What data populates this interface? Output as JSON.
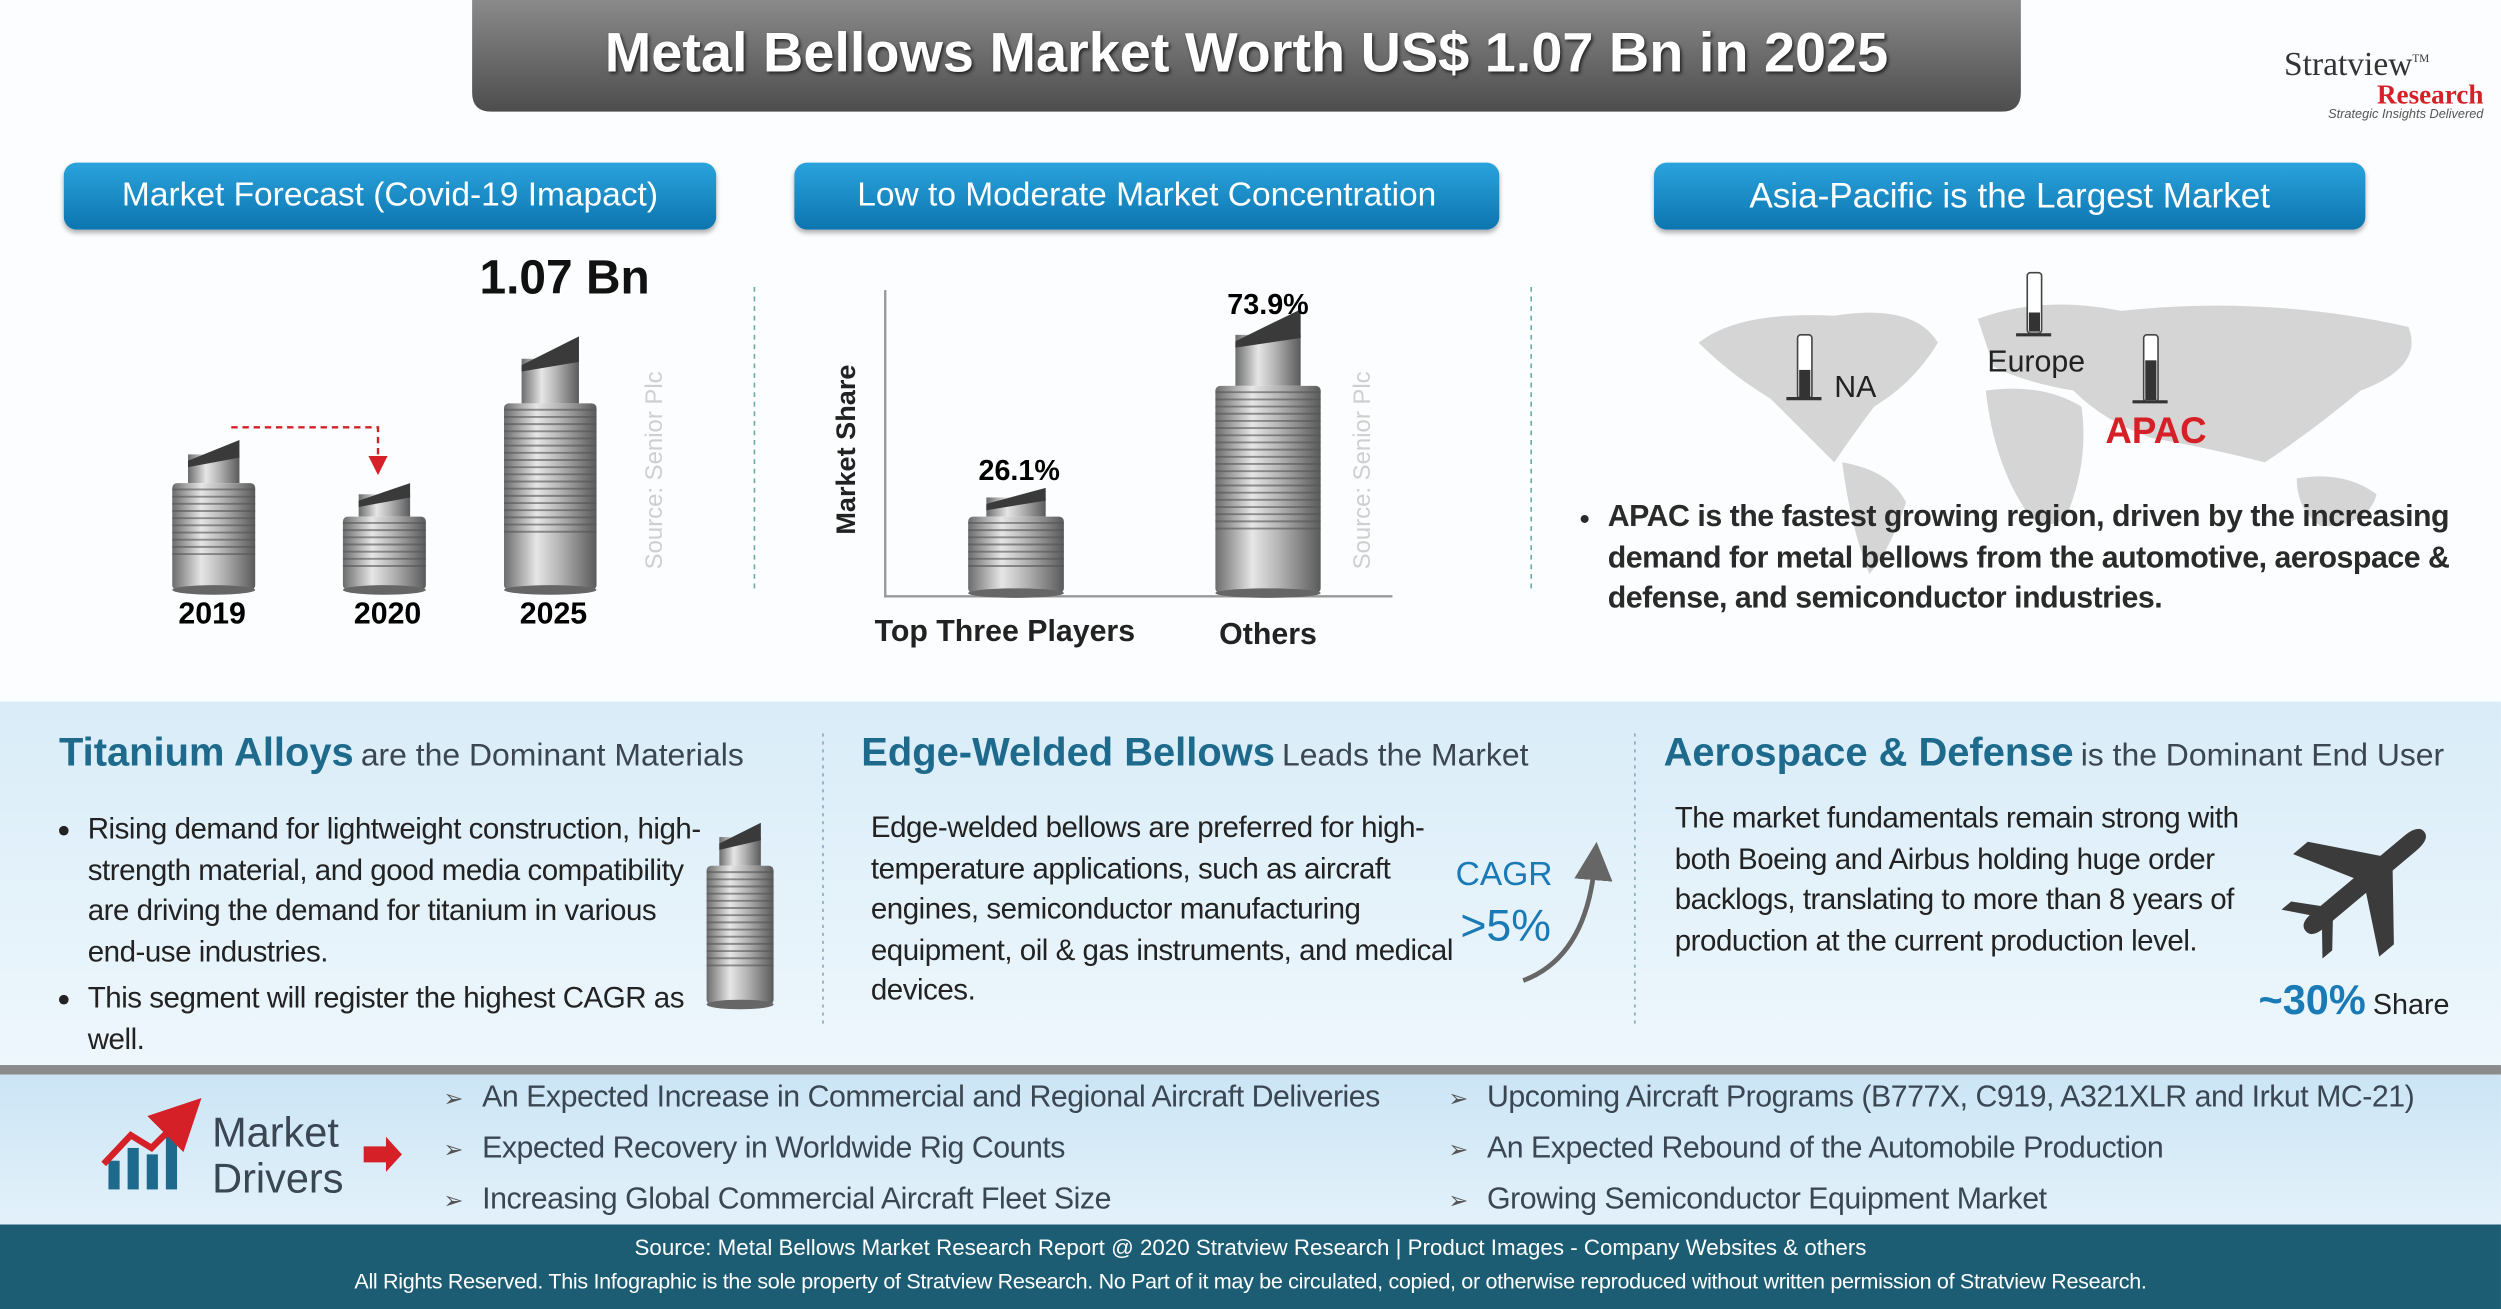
{
  "header": {
    "title": "Metal Bellows Market Worth US$ 1.07 Bn in 2025",
    "logo": {
      "name": "Stratview",
      "tm": "TM",
      "sub": "Research",
      "tagline": "Strategic Insights Delivered"
    }
  },
  "forecast": {
    "heading": "Market Forecast (Covid-19 Imapact)",
    "value_label": "1.07 Bn",
    "years": [
      "2019",
      "2020",
      "2025"
    ],
    "source": "Source: Senior Plc"
  },
  "concentration": {
    "heading": "Low to Moderate Market Concentration",
    "y_label": "Market Share",
    "bars": [
      {
        "label": "Top Three Players",
        "value_label": "26.1%"
      },
      {
        "label": "Others",
        "value_label": "73.9%"
      }
    ],
    "source": "Source: Senior Plc"
  },
  "region": {
    "heading": "Asia-Pacific is the Largest Market",
    "regions": [
      "NA",
      "Europe",
      "APAC"
    ],
    "bullet": "APAC is the fastest growing region, driven by the increasing demand for metal bellows from the automotive, aerospace & defense, and semiconductor industries."
  },
  "materials": {
    "highlight": "Titanium Alloys",
    "heading": "are the Dominant Materials",
    "bullets": [
      "Rising demand for lightweight construction, high-strength material, and good media compatibility are driving the demand for titanium in various end-use industries.",
      "This segment will register the highest CAGR as well."
    ]
  },
  "types": {
    "highlight": "Edge-Welded Bellows",
    "heading": "Leads the Market",
    "text": "Edge-welded bellows are preferred for high-temperature applications, such as aircraft engines, semiconductor manufacturing equipment, oil & gas instruments, and medical devices.",
    "cagr_label": "CAGR",
    "cagr_value": ">5%"
  },
  "end_user": {
    "highlight": "Aerospace & Defense",
    "heading": "is the Dominant End User",
    "text": "The market fundamentals remain strong with both Boeing and Airbus holding huge order backlogs, translating to more than 8 years of production at the current production level.",
    "share_value": "~30%",
    "share_label": "Share"
  },
  "drivers": {
    "title": [
      "Market",
      "Drivers"
    ],
    "items": [
      "An Expected Increase in Commercial and Regional Aircraft Deliveries",
      "Upcoming Aircraft Programs (B777X, C919, A321XLR and Irkut MC-21)",
      "Expected Recovery in Worldwide Rig Counts",
      "An Expected Rebound of the Automobile Production",
      "Increasing Global Commercial Aircraft Fleet Size",
      "Growing Semiconductor Equipment Market"
    ]
  },
  "footer": {
    "source": "Source: Metal Bellows Market Research Report @ 2020 Stratview Research | Product Images - Company Websites & others",
    "rights": "All Rights Reserved. This Infographic is the sole property of Stratview Research. No Part of it may be circulated, copied, or otherwise reproduced without written permission of Stratview Research."
  }
}
